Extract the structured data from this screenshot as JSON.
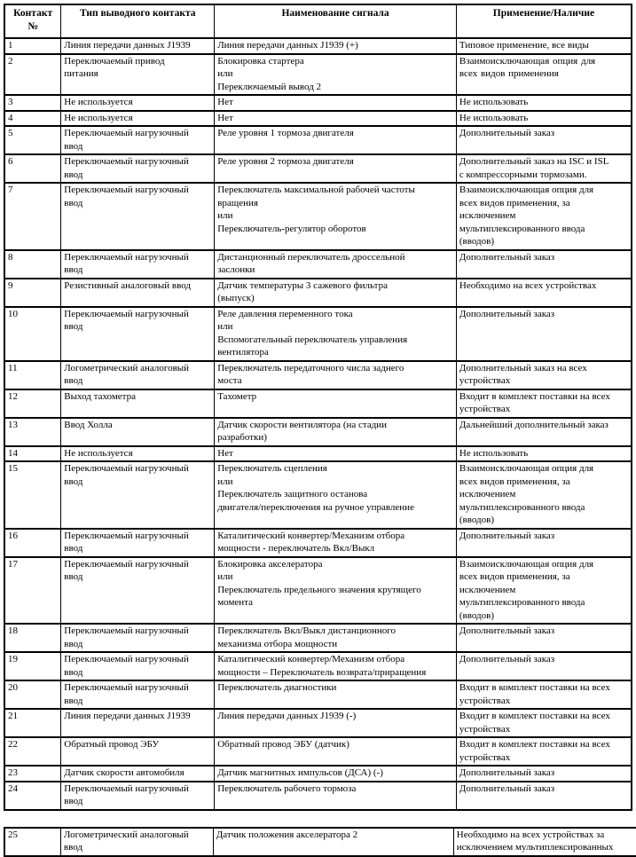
{
  "table": {
    "headers": [
      "Контакт\n№",
      "Тип выводного контакта",
      "Наименование сигнала",
      "Применение/Наличие"
    ],
    "rows": [
      {
        "pin": "1",
        "type": "Линия передачи данных J1939",
        "signal": "Линия передачи данных J1939 (+)",
        "application": "Типовое применение, все виды"
      },
      {
        "pin": "2",
        "type": "Переключаемый привод\nпитания",
        "signal": "Блокировка стартера\nили\nПереключаемый вывод 2",
        "application": "Взаимоисключающая  опция  для\nвсех видов применения"
      },
      {
        "pin": "3",
        "type": "Не используется",
        "signal": "Нет",
        "application": "Не использовать"
      },
      {
        "pin": "4",
        "type": "Не используется",
        "signal": "Нет",
        "application": "Не использовать"
      },
      {
        "pin": "5",
        "type": "Переключаемый нагрузочный\nввод",
        "signal": "Реле уровня 1 тормоза двигателя",
        "application": "Дополнительный заказ"
      },
      {
        "pin": "6",
        "type": "Переключаемый нагрузочный\nввод",
        "signal": "Реле уровня 2 тормоза двигателя",
        "application": "Дополнительный заказ на ISC и ISL\nс компрессорными тормозами."
      },
      {
        "pin": "7",
        "type": "Переключаемый нагрузочный\nввод",
        "signal": "Переключатель максимальной рабочей частоты\nвращения\nили\nПереключатель-регулятор оборотов",
        "application": "Взаимоисключающая опция для\nвсех видов применения, за\nисключением\nмультиплексированного ввода\n(вводов)"
      },
      {
        "pin": "8",
        "type": "Переключаемый нагрузочный\nввод",
        "signal": "Дистанционный переключатель дроссельной\nзаслонки",
        "application": "Дополнительный заказ"
      },
      {
        "pin": "9",
        "type": "Резистивный аналоговый ввод",
        "signal": "Датчик температуры 3 сажевого фильтра\n(выпуск)",
        "application": "Необходимо на всех устройствах"
      },
      {
        "pin": "10",
        "type": "Переключаемый нагрузочный\nввод",
        "signal": "Реле давления переменного тока\nили\nВспомогательный переключатель управления\nвентилятора",
        "application": "Дополнительный заказ"
      },
      {
        "pin": "11",
        "type": "Логометрический аналоговый\nввод",
        "signal": "Переключатель передаточного числа заднего\nмоста",
        "application": "Дополнительный заказ на всех\nустройствах"
      },
      {
        "pin": "12",
        "type": "Выход тахометра",
        "signal": "Тахометр",
        "application": "Входит в комплект поставки на всех\nустройствах"
      },
      {
        "pin": "13",
        "type": "Ввод Холла",
        "signal": "Датчик скорости вентилятора (на стадии\nразработки)",
        "application": "Дальнейший дополнительный заказ"
      },
      {
        "pin": "14",
        "type": "Не используется",
        "signal": "Нет",
        "application": "Не использовать"
      },
      {
        "pin": "15",
        "type": "Переключаемый нагрузочный\nввод",
        "signal": "Переключатель сцепления\nили\nПереключатель защитного останова\nдвигателя/переключения на ручное управление",
        "application": "Взаимоисключающая опция для\nвсех видов применения, за\nисключением\nмультиплексированного ввода\n(вводов)"
      },
      {
        "pin": "16",
        "type": "Переключаемый нагрузочный\nввод",
        "signal": "Каталитический конвертер/Механизм отбора\nмощности - переключатель Вкл/Выкл",
        "application": "Дополнительный заказ"
      },
      {
        "pin": "17",
        "type": "Переключаемый нагрузочный\nввод",
        "signal": "Блокировка акселератора\nили\nПереключатель предельного значения крутящего\nмомента",
        "application": "Взаимоисключающая опция для\nвсех видов применения, за\nисключением\nмультиплексированного ввода\n(вводов)"
      },
      {
        "pin": "18",
        "type": "Переключаемый нагрузочный\nввод",
        "signal": "Переключатель Вкл/Выкл дистанционного\nмеханизма отбора мощности",
        "application": "Дополнительный заказ"
      },
      {
        "pin": "19",
        "type": "Переключаемый нагрузочный\nввод",
        "signal": "Каталитический конвертер/Механизм отбора\nмощности – Переключатель возврата/приращения",
        "application": "Дополнительный заказ"
      },
      {
        "pin": "20",
        "type": "Переключаемый нагрузочный\nввод",
        "signal": "Переключатель диагностики",
        "application": "Входит в комплект поставки на всех\nустройствах"
      },
      {
        "pin": "21",
        "type": "Линия передачи данных J1939",
        "signal": "Линия передачи данных J1939 (-)",
        "application": "Входит в комплект поставки на всех\nустройствах"
      },
      {
        "pin": "22",
        "type": "Обратный провод ЭБУ",
        "signal": "Обратный провод ЭБУ (датчик)",
        "application": "Входит в комплект поставки на всех\nустройствах"
      },
      {
        "pin": "23",
        "type": "Датчик скорости автомобиля",
        "signal": "Датчик магнитных импульсов (ДСА) (-)",
        "application": "Дополнительный заказ"
      },
      {
        "pin": "24",
        "type": "Переключаемый нагрузочный\nввод",
        "signal": "Переключатель рабочего тормоза",
        "application": "Дополнительный заказ"
      }
    ]
  },
  "table2": {
    "rows": [
      {
        "pin": "25",
        "type": "Логометрический аналоговый\nввод",
        "signal": "Датчик положения акселератора 2",
        "application": "Необходимо на всех устройствах за\nисключением мультиплексированных"
      }
    ]
  },
  "colors": {
    "border": "#000000",
    "text": "#000000",
    "background": "#ffffff"
  }
}
